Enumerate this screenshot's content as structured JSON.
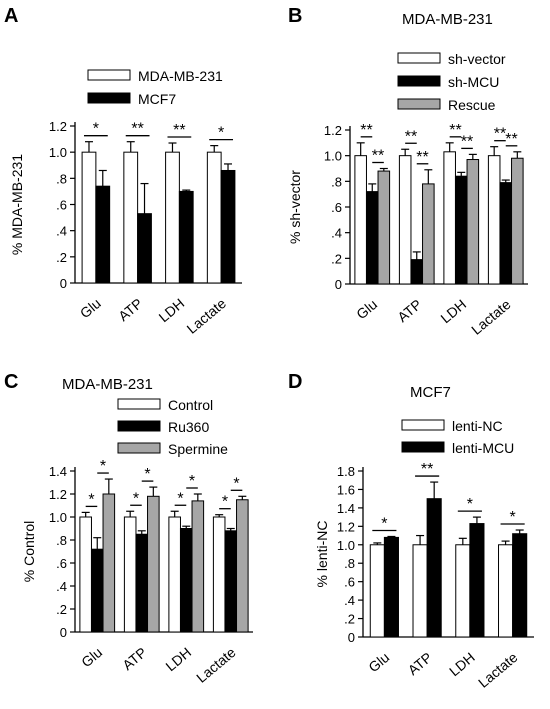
{
  "chart_data": [
    {
      "panel": "A",
      "type": "bar",
      "title": "",
      "ylabel": "% MDA-MB-231",
      "ylim": [
        0,
        1.2
      ],
      "yticks": [
        "0",
        ".2",
        ".4",
        ".6",
        ".8",
        "1.0",
        "1.2"
      ],
      "categories": [
        "Glu",
        "ATP",
        "LDH",
        "Lactate"
      ],
      "series": [
        {
          "name": "MDA-MB-231",
          "color": "#ffffff",
          "values": [
            1.0,
            1.0,
            1.0,
            1.0
          ],
          "errors": [
            0.08,
            0.08,
            0.07,
            0.05
          ]
        },
        {
          "name": "MCF7",
          "color": "#000000",
          "values": [
            0.74,
            0.53,
            0.7,
            0.86
          ],
          "errors": [
            0.12,
            0.23,
            0.01,
            0.05
          ]
        }
      ],
      "significance": [
        "*",
        "**",
        "**",
        "*"
      ]
    },
    {
      "panel": "B",
      "type": "bar",
      "title": "MDA-MB-231",
      "ylabel": "% sh-vector",
      "ylim": [
        0,
        1.2
      ],
      "yticks": [
        "0",
        ".2",
        ".4",
        ".6",
        ".8",
        "1.0",
        "1.2"
      ],
      "categories": [
        "Glu",
        "ATP",
        "LDH",
        "Lactate"
      ],
      "series": [
        {
          "name": "sh-vector",
          "color": "#ffffff",
          "values": [
            1.0,
            1.0,
            1.03,
            1.0
          ],
          "errors": [
            0.1,
            0.05,
            0.07,
            0.07
          ]
        },
        {
          "name": "sh-MCU",
          "color": "#000000",
          "values": [
            0.72,
            0.19,
            0.84,
            0.79
          ],
          "errors": [
            0.06,
            0.06,
            0.03,
            0.02
          ]
        },
        {
          "name": "Rescue",
          "color": "#a6a6a6",
          "values": [
            0.88,
            0.78,
            0.97,
            0.98
          ],
          "errors": [
            0.02,
            0.11,
            0.04,
            0.05
          ]
        }
      ],
      "significance": [
        [
          "**",
          "**"
        ],
        [
          "**",
          "**"
        ],
        [
          "**",
          "**"
        ],
        [
          "**",
          "**"
        ]
      ]
    },
    {
      "panel": "C",
      "type": "bar",
      "title": "MDA-MB-231",
      "ylabel": "% Control",
      "ylim": [
        0,
        1.4
      ],
      "yticks": [
        "0",
        ".2",
        ".4",
        ".6",
        ".8",
        "1.0",
        "1.2",
        "1.4"
      ],
      "categories": [
        "Glu",
        "ATP",
        "LDH",
        "Lactate"
      ],
      "series": [
        {
          "name": "Control",
          "color": "#ffffff",
          "values": [
            1.0,
            1.0,
            1.0,
            1.0
          ],
          "errors": [
            0.04,
            0.05,
            0.05,
            0.02
          ]
        },
        {
          "name": "Ru360",
          "color": "#000000",
          "values": [
            0.72,
            0.85,
            0.9,
            0.88
          ],
          "errors": [
            0.1,
            0.03,
            0.02,
            0.02
          ]
        },
        {
          "name": "Spermine",
          "color": "#a6a6a6",
          "values": [
            1.2,
            1.18,
            1.14,
            1.15
          ],
          "errors": [
            0.13,
            0.08,
            0.06,
            0.03
          ]
        }
      ],
      "significance": [
        [
          "*",
          "*"
        ],
        [
          "*",
          "*"
        ],
        [
          "*",
          "*"
        ],
        [
          "*",
          "*"
        ]
      ]
    },
    {
      "panel": "D",
      "type": "bar",
      "title": "MCF7",
      "ylabel": "% lenti-NC",
      "ylim": [
        0,
        1.8
      ],
      "yticks": [
        "0",
        ".2",
        ".4",
        ".6",
        ".8",
        "1.0",
        "1.2",
        "1.4",
        "1.6",
        "1.8"
      ],
      "categories": [
        "Glu",
        "ATP",
        "LDH",
        "Lactate"
      ],
      "series": [
        {
          "name": "lenti-NC",
          "color": "#ffffff",
          "values": [
            1.0,
            1.0,
            1.0,
            1.0
          ],
          "errors": [
            0.02,
            0.1,
            0.07,
            0.04
          ]
        },
        {
          "name": "lenti-MCU",
          "color": "#000000",
          "values": [
            1.08,
            1.5,
            1.23,
            1.12
          ],
          "errors": [
            0.01,
            0.18,
            0.07,
            0.04
          ]
        }
      ],
      "significance": [
        "*",
        "**",
        "*",
        "*"
      ]
    }
  ]
}
